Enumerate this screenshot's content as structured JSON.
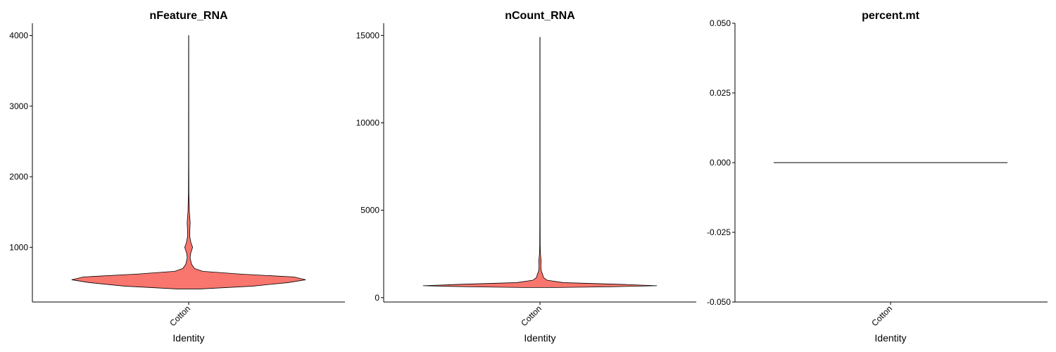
{
  "chart_data": [
    {
      "type": "violin",
      "title": "nFeature_RNA",
      "xlabel": "Identity",
      "ylabel": "",
      "categories": [
        "Cotton"
      ],
      "ylim": [
        225,
        4175
      ],
      "yticks": [
        1000,
        2000,
        3000,
        4000
      ],
      "ytick_labels": [
        "1000",
        "2000",
        "3000",
        "4000"
      ],
      "fill_color": "#F8766D",
      "outline_color": "#000000",
      "max_value": 4000,
      "density_profile": [
        {
          "y": 410,
          "half_width": 0.1
        },
        {
          "y": 450,
          "half_width": 0.55
        },
        {
          "y": 500,
          "half_width": 0.85
        },
        {
          "y": 540,
          "half_width": 1.0
        },
        {
          "y": 580,
          "half_width": 0.9
        },
        {
          "y": 620,
          "half_width": 0.45
        },
        {
          "y": 660,
          "half_width": 0.12
        },
        {
          "y": 700,
          "half_width": 0.05
        },
        {
          "y": 760,
          "half_width": 0.025
        },
        {
          "y": 850,
          "half_width": 0.012
        },
        {
          "y": 920,
          "half_width": 0.018
        },
        {
          "y": 1000,
          "half_width": 0.034
        },
        {
          "y": 1060,
          "half_width": 0.02
        },
        {
          "y": 1150,
          "half_width": 0.01
        },
        {
          "y": 1250,
          "half_width": 0.01
        },
        {
          "y": 1350,
          "half_width": 0.013
        },
        {
          "y": 1500,
          "half_width": 0.006
        },
        {
          "y": 1650,
          "half_width": 0.004
        },
        {
          "y": 1760,
          "half_width": 0.002
        },
        {
          "y": 2200,
          "half_width": 0.0012
        },
        {
          "y": 4000,
          "half_width": 0.0008
        }
      ]
    },
    {
      "type": "violin",
      "title": "nCount_RNA",
      "xlabel": "Identity",
      "ylabel": "",
      "categories": [
        "Cotton"
      ],
      "ylim": [
        -250,
        15700
      ],
      "yticks": [
        0,
        5000,
        10000,
        15000
      ],
      "ytick_labels": [
        "0",
        "5000",
        "10000",
        "15000"
      ],
      "fill_color": "#F8766D",
      "outline_color": "#000000",
      "max_value": 14900,
      "density_profile": [
        {
          "y": 580,
          "half_width": 0.15
        },
        {
          "y": 620,
          "half_width": 0.6
        },
        {
          "y": 680,
          "half_width": 1.0
        },
        {
          "y": 760,
          "half_width": 0.7
        },
        {
          "y": 860,
          "half_width": 0.2
        },
        {
          "y": 1000,
          "half_width": 0.06
        },
        {
          "y": 1150,
          "half_width": 0.03
        },
        {
          "y": 1350,
          "half_width": 0.022
        },
        {
          "y": 1500,
          "half_width": 0.012
        },
        {
          "y": 1800,
          "half_width": 0.008
        },
        {
          "y": 2100,
          "half_width": 0.01
        },
        {
          "y": 2500,
          "half_width": 0.004
        },
        {
          "y": 3000,
          "half_width": 0.002
        },
        {
          "y": 5000,
          "half_width": 0.0012
        },
        {
          "y": 14900,
          "half_width": 0.0008
        }
      ]
    },
    {
      "type": "violin",
      "title": "percent.mt",
      "xlabel": "Identity",
      "ylabel": "",
      "categories": [
        "Cotton"
      ],
      "ylim": [
        -0.05,
        0.05
      ],
      "yticks": [
        -0.05,
        -0.025,
        0.0,
        0.025,
        0.05
      ],
      "ytick_labels": [
        "-0.050",
        "-0.025",
        "0.000",
        "0.025",
        "0.050"
      ],
      "fill_color": "#F8766D",
      "outline_color": "#000000",
      "constant_value": 0.0
    }
  ]
}
